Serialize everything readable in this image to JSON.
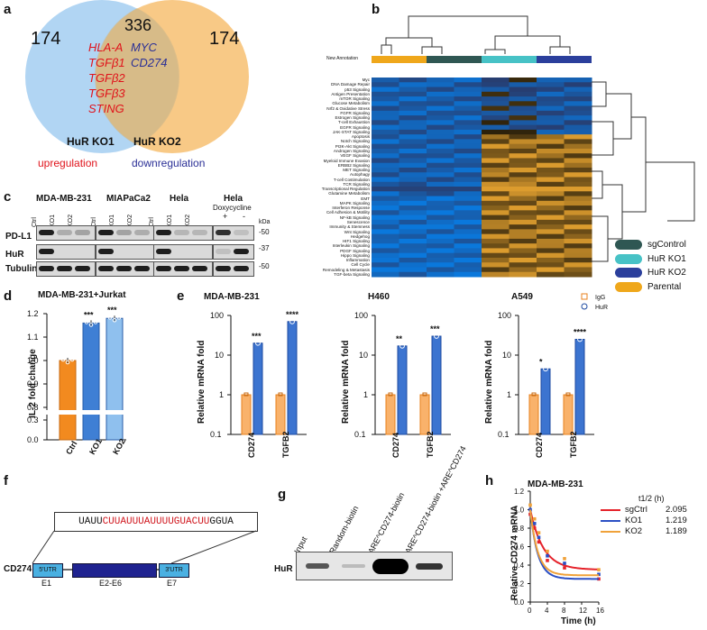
{
  "panels": [
    "a",
    "b",
    "c",
    "d",
    "e",
    "f",
    "g",
    "h"
  ],
  "venn": {
    "left_count": "174",
    "overlap_count": "336",
    "right_count": "174",
    "up_genes": [
      "HLA-A",
      "TGFβ1",
      "TGFβ2",
      "TGFβ3",
      "STING"
    ],
    "down_genes": [
      "MYC",
      "CD274"
    ],
    "left_label": "HuR KO1",
    "right_label": "HuR KO2",
    "legend_up": "upregulation",
    "legend_down": "downregulation",
    "colors": {
      "left": "#9cc8ef",
      "right": "#f9c77a",
      "up": "#e0131b",
      "down": "#2a2f96"
    }
  },
  "heatmap": {
    "annotation_label": "New Annotation",
    "rows": [
      "Myc",
      "DNA Damage Repair",
      "p53 Signaling",
      "Antigen Presentation",
      "mTOR Signaling",
      "Glucose Metabolism",
      "Nrf2 & Oxidative Stress",
      "FGFR Signaling",
      "Estrogen Signaling",
      "T-cell Exhaustion",
      "EGFR Signaling",
      "JAK-STAT Signaling",
      "Apoptosis",
      "Notch Signaling",
      "PI3K-Akt Signaling",
      "Androgen Signaling",
      "VEGF Signaling",
      "Myeloid Immune Evasion",
      "ERBB2 Signaling",
      "MET Signaling",
      "Autophagy",
      "T-cell Costimulation",
      "TCR Signaling",
      "Transcriptional Regulation",
      "Glutamine Metabolism",
      "EMT",
      "MAPK Signaling",
      "Interferon Response",
      "Cell Adhesion & Motility",
      "NF-kB Signaling",
      "Senescence",
      "Immunity & Stemness",
      "Wnt Signaling",
      "Hedgehog",
      "HIF1 Signaling",
      "Interleukin Signaling",
      "PDGF Signaling",
      "Hippo Signaling",
      "Inflammation",
      "Cell Cycle",
      "Remodeling & Metastasis",
      "TGF-beta Signaling"
    ],
    "legend": [
      {
        "label": "sgControl",
        "color": "#2f5753"
      },
      {
        "label": "HuR KO1",
        "color": "#47c2c6"
      },
      {
        "label": "HuR KO2",
        "color": "#2b3f9c"
      },
      {
        "label": "Parental",
        "color": "#efa71b"
      }
    ]
  },
  "blot_c": {
    "cell_lines": [
      "MDA-MB-231",
      "MIAPaCa2",
      "Hela",
      "Hela"
    ],
    "lanes": [
      "Ctrl",
      "KO1",
      "KO2"
    ],
    "dox_label": "Doxycycline",
    "dox_lanes": [
      "+",
      "-"
    ],
    "rows": [
      "PD-L1",
      "HuR",
      "Tubulin"
    ],
    "kda_label": "kDa",
    "markers": [
      "-50",
      "-37",
      "-50"
    ]
  },
  "chart_d": {
    "title": "MDA-MB-231+Jurkat",
    "ylabel": "IL-2 fold change",
    "categories": [
      "Ctrl",
      "KO1",
      "KO2"
    ],
    "values": [
      1.0,
      1.16,
      1.18
    ],
    "sig": [
      "",
      "***",
      "***"
    ],
    "ticks": [
      "1.2",
      "1.1",
      "1.0",
      "0.9",
      "0.8",
      "0.3",
      "0.0"
    ],
    "colors": [
      "#f28a1f",
      "#3f7fd4",
      "#8fc0ee"
    ]
  },
  "chart_e": {
    "ylabel": "Relative mRNA fold",
    "legend": [
      "IgG",
      "HuR"
    ],
    "ticks": [
      "100",
      "10",
      "1",
      "0.1"
    ],
    "x_labels": [
      "CD274",
      "TGFB2"
    ],
    "subcharts": [
      {
        "title": "MDA-MB-231",
        "igg": [
          1,
          1
        ],
        "hur": [
          20,
          70
        ],
        "sig": [
          "***",
          "****"
        ]
      },
      {
        "title": "H460",
        "igg": [
          1,
          1
        ],
        "hur": [
          17,
          30
        ],
        "sig": [
          "**",
          "***"
        ]
      },
      {
        "title": "A549",
        "igg": [
          1,
          1
        ],
        "hur": [
          4.5,
          25
        ],
        "sig": [
          "*",
          "****"
        ]
      }
    ]
  },
  "panel_f": {
    "seq_prefix": "UAUU",
    "seq_core": "CUUAUUUAUUUUGUACUU",
    "seq_suffix": "GGUA",
    "gene": "CD274",
    "boxes": [
      "5'UTR",
      "",
      "3'UTR"
    ],
    "exons": [
      "E1",
      "E2-E6",
      "E7"
    ]
  },
  "blot_g": {
    "lanes": [
      "Input",
      "Random-biotin",
      "ARE^CD274-biotin",
      "ARE^CD274-biotin +ARE^CD274"
    ],
    "row": "HuR"
  },
  "chart_h": {
    "title": "MDA-MB-231",
    "ylabel": "Relative CD274 mRNA",
    "xlabel": "Time (h)",
    "half_life_header": "t1/2 (h)",
    "series": [
      {
        "name": "sgCtrl",
        "t_half": "2.095",
        "color": "#e5222a"
      },
      {
        "name": "KO1",
        "t_half": "1.219",
        "color": "#2b4fc4"
      },
      {
        "name": "KO2",
        "t_half": "1.189",
        "color": "#f0a23a"
      }
    ],
    "yticks": [
      "1.2",
      "1.0",
      "0.8",
      "0.6",
      "0.4",
      "0.2",
      "0.0"
    ],
    "xticks": [
      "0",
      "4",
      "8",
      "12",
      "16"
    ]
  }
}
